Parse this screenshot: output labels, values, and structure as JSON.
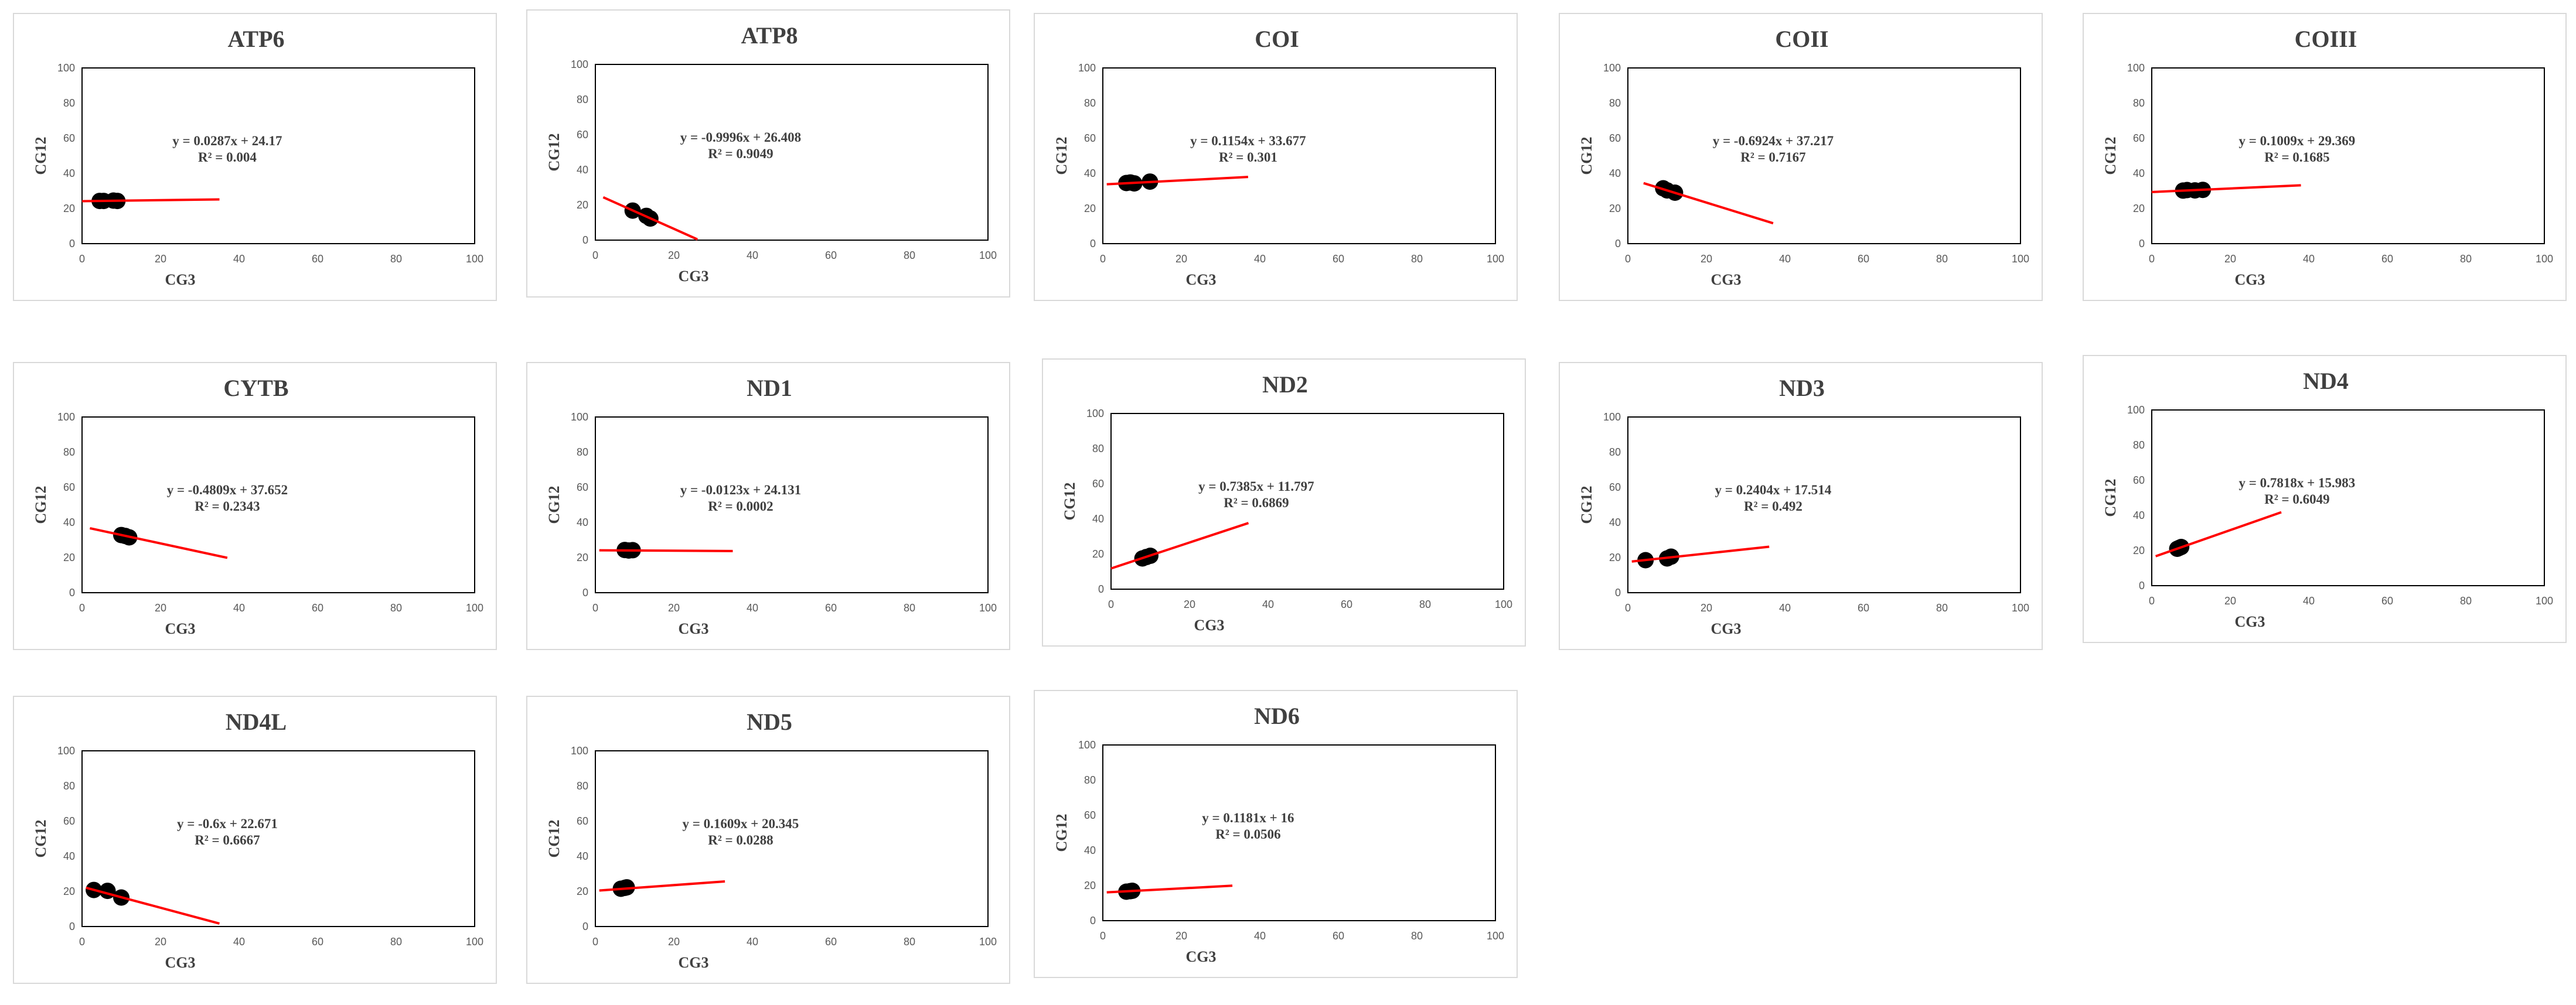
{
  "chart_data": [
    {
      "type": "scatter",
      "title": "ATP6",
      "xlabel": "CG3",
      "ylabel": "CG12",
      "xlim": [
        0,
        100
      ],
      "ylim": [
        0,
        100
      ],
      "xticks": [
        "0",
        "20",
        "40",
        "60",
        "80",
        "100"
      ],
      "yticks": [
        "0",
        "20",
        "40",
        "60",
        "80",
        "100"
      ],
      "x": [
        4.5,
        5.5,
        8,
        9
      ],
      "y": [
        24.3,
        24.3,
        24.5,
        24.3
      ],
      "equation": "y = 0.0287x + 24.17",
      "r2": "R² = 0.004",
      "trend": {
        "slope": 0.0287,
        "intercept": 24.17,
        "x_range": [
          0,
          35
        ]
      },
      "color": "#ff0000"
    },
    {
      "type": "scatter",
      "title": "ATP8",
      "xlabel": "CG3",
      "ylabel": "CG12",
      "xlim": [
        0,
        100
      ],
      "ylim": [
        0,
        100
      ],
      "xticks": [
        "0",
        "20",
        "40",
        "60",
        "80",
        "100"
      ],
      "yticks": [
        "0",
        "20",
        "40",
        "60",
        "80",
        "100"
      ],
      "x": [
        9.5,
        13,
        14
      ],
      "y": [
        16.8,
        13.8,
        12.3
      ],
      "equation": "y = -0.9996x + 26.408",
      "r2": "R² = 0.9049",
      "trend": {
        "slope": -0.9996,
        "intercept": 26.408,
        "x_range": [
          2,
          26
        ]
      },
      "color": "#ff0000"
    },
    {
      "type": "scatter",
      "title": "COI",
      "xlabel": "CG3",
      "ylabel": "CG12",
      "xlim": [
        0,
        100
      ],
      "ylim": [
        0,
        100
      ],
      "xticks": [
        "0",
        "20",
        "40",
        "60",
        "80",
        "100"
      ],
      "yticks": [
        "0",
        "20",
        "40",
        "60",
        "80",
        "100"
      ],
      "x": [
        6,
        7,
        8,
        12
      ],
      "y": [
        34.5,
        34.8,
        34.3,
        35.3
      ],
      "equation": "y = 0.1154x + 33.677",
      "r2": "R² = 0.301",
      "trend": {
        "slope": 0.1154,
        "intercept": 33.677,
        "x_range": [
          1,
          37
        ]
      },
      "color": "#ff0000"
    },
    {
      "type": "scatter",
      "title": "COII",
      "xlabel": "CG3",
      "ylabel": "CG12",
      "xlim": [
        0,
        100
      ],
      "ylim": [
        0,
        100
      ],
      "xticks": [
        "0",
        "20",
        "40",
        "60",
        "80",
        "100"
      ],
      "yticks": [
        "0",
        "20",
        "40",
        "60",
        "80",
        "100"
      ],
      "x": [
        9,
        10,
        12
      ],
      "y": [
        31.5,
        30.3,
        29.0
      ],
      "equation": "y = -0.6924x + 37.217",
      "r2": "R² = 0.7167",
      "trend": {
        "slope": -0.6924,
        "intercept": 37.217,
        "x_range": [
          4,
          37
        ]
      },
      "color": "#ff0000"
    },
    {
      "type": "scatter",
      "title": "COIII",
      "xlabel": "CG3",
      "ylabel": "CG12",
      "xlim": [
        0,
        100
      ],
      "ylim": [
        0,
        100
      ],
      "xticks": [
        "0",
        "20",
        "40",
        "60",
        "80",
        "100"
      ],
      "yticks": [
        "0",
        "20",
        "40",
        "60",
        "80",
        "100"
      ],
      "x": [
        8,
        9,
        11,
        13
      ],
      "y": [
        30.2,
        30.5,
        30.3,
        30.6
      ],
      "equation": "y = 0.1009x + 29.369",
      "r2": "R² = 0.1685",
      "trend": {
        "slope": 0.1009,
        "intercept": 29.369,
        "x_range": [
          0,
          38
        ]
      },
      "color": "#ff0000"
    },
    {
      "type": "scatter",
      "title": "CYTB",
      "xlabel": "CG3",
      "ylabel": "CG12",
      "xlim": [
        0,
        100
      ],
      "ylim": [
        0,
        100
      ],
      "xticks": [
        "0",
        "20",
        "40",
        "60",
        "80",
        "100"
      ],
      "yticks": [
        "0",
        "20",
        "40",
        "60",
        "80",
        "100"
      ],
      "x": [
        10,
        11,
        12
      ],
      "y": [
        32.8,
        32.3,
        31.5
      ],
      "equation": "y = -0.4809x + 37.652",
      "r2": "R² = 0.2343",
      "trend": {
        "slope": -0.4809,
        "intercept": 37.652,
        "x_range": [
          2,
          37
        ]
      },
      "color": "#ff0000"
    },
    {
      "type": "scatter",
      "title": "ND1",
      "xlabel": "CG3",
      "ylabel": "CG12",
      "xlim": [
        0,
        100
      ],
      "ylim": [
        0,
        100
      ],
      "xticks": [
        "0",
        "20",
        "40",
        "60",
        "80",
        "100"
      ],
      "yticks": [
        "0",
        "20",
        "40",
        "60",
        "80",
        "100"
      ],
      "x": [
        7.5,
        8.5,
        9.5
      ],
      "y": [
        24.3,
        24.0,
        24.2
      ],
      "equation": "y = -0.0123x + 24.131",
      "r2": "R² = 0.0002",
      "trend": {
        "slope": -0.0123,
        "intercept": 24.131,
        "x_range": [
          1,
          35
        ]
      },
      "color": "#ff0000"
    },
    {
      "type": "scatter",
      "title": "ND2",
      "xlabel": "CG3",
      "ylabel": "CG12",
      "xlim": [
        0,
        100
      ],
      "ylim": [
        0,
        100
      ],
      "xticks": [
        "0",
        "20",
        "40",
        "60",
        "80",
        "100"
      ],
      "yticks": [
        "0",
        "20",
        "40",
        "60",
        "80",
        "100"
      ],
      "x": [
        8,
        9,
        10
      ],
      "y": [
        17.5,
        18.3,
        19.0
      ],
      "equation": "y = 0.7385x + 11.797",
      "r2": "R² = 0.6869",
      "trend": {
        "slope": 0.7385,
        "intercept": 11.797,
        "x_range": [
          0,
          35
        ]
      },
      "color": "#ff0000"
    },
    {
      "type": "scatter",
      "title": "ND3",
      "xlabel": "CG3",
      "ylabel": "CG12",
      "xlim": [
        0,
        100
      ],
      "ylim": [
        0,
        100
      ],
      "xticks": [
        "0",
        "20",
        "40",
        "60",
        "80",
        "100"
      ],
      "yticks": [
        "0",
        "20",
        "40",
        "60",
        "80",
        "100"
      ],
      "x": [
        4.5,
        10,
        11
      ],
      "y": [
        18.5,
        19.5,
        20.5
      ],
      "equation": "y = 0.2404x + 17.514",
      "r2": "R² = 0.492",
      "trend": {
        "slope": 0.2404,
        "intercept": 17.514,
        "x_range": [
          1,
          36
        ]
      },
      "color": "#ff0000"
    },
    {
      "type": "scatter",
      "title": "ND4",
      "xlabel": "CG3",
      "ylabel": "CG12",
      "xlim": [
        0,
        100
      ],
      "ylim": [
        0,
        100
      ],
      "xticks": [
        "0",
        "20",
        "40",
        "60",
        "80",
        "100"
      ],
      "yticks": [
        "0",
        "20",
        "40",
        "60",
        "80",
        "100"
      ],
      "x": [
        6.5,
        7,
        7.5
      ],
      "y": [
        21.0,
        21.5,
        22.0
      ],
      "equation": "y = 0.7818x + 15.983",
      "r2": "R² = 0.6049",
      "trend": {
        "slope": 0.7818,
        "intercept": 15.983,
        "x_range": [
          1,
          33
        ]
      },
      "color": "#ff0000"
    },
    {
      "type": "scatter",
      "title": "ND4L",
      "xlabel": "CG3",
      "ylabel": "CG12",
      "xlim": [
        0,
        100
      ],
      "ylim": [
        0,
        100
      ],
      "xticks": [
        "0",
        "20",
        "40",
        "60",
        "80",
        "100"
      ],
      "yticks": [
        "0",
        "20",
        "40",
        "60",
        "80",
        "100"
      ],
      "x": [
        3,
        6.5,
        10
      ],
      "y": [
        20.8,
        20.3,
        16.5
      ],
      "equation": "y = -0.6x + 22.671",
      "r2": "R² = 0.6667",
      "trend": {
        "slope": -0.6,
        "intercept": 22.671,
        "x_range": [
          1,
          35
        ]
      },
      "color": "#ff0000"
    },
    {
      "type": "scatter",
      "title": "ND5",
      "xlabel": "CG3",
      "ylabel": "CG12",
      "xlim": [
        0,
        100
      ],
      "ylim": [
        0,
        100
      ],
      "xticks": [
        "0",
        "20",
        "40",
        "60",
        "80",
        "100"
      ],
      "yticks": [
        "0",
        "20",
        "40",
        "60",
        "80",
        "100"
      ],
      "x": [
        6.5,
        7.5,
        8
      ],
      "y": [
        21.5,
        22.0,
        22.3
      ],
      "equation": "y = 0.1609x + 20.345",
      "r2": "R² = 0.0288",
      "trend": {
        "slope": 0.1609,
        "intercept": 20.345,
        "x_range": [
          1,
          33
        ]
      },
      "color": "#ff0000"
    },
    {
      "type": "scatter",
      "title": "ND6",
      "xlabel": "CG3",
      "ylabel": "CG12",
      "xlim": [
        0,
        100
      ],
      "ylim": [
        0,
        100
      ],
      "xticks": [
        "0",
        "20",
        "40",
        "60",
        "80",
        "100"
      ],
      "yticks": [
        "0",
        "20",
        "40",
        "60",
        "80",
        "100"
      ],
      "x": [
        6,
        7,
        7.5
      ],
      "y": [
        16.5,
        16.8,
        17.0
      ],
      "equation": "y = 0.1181x + 16",
      "r2": "R² = 0.0506",
      "trend": {
        "slope": 0.1181,
        "intercept": 16,
        "x_range": [
          1,
          33
        ]
      },
      "color": "#ff0000"
    }
  ]
}
